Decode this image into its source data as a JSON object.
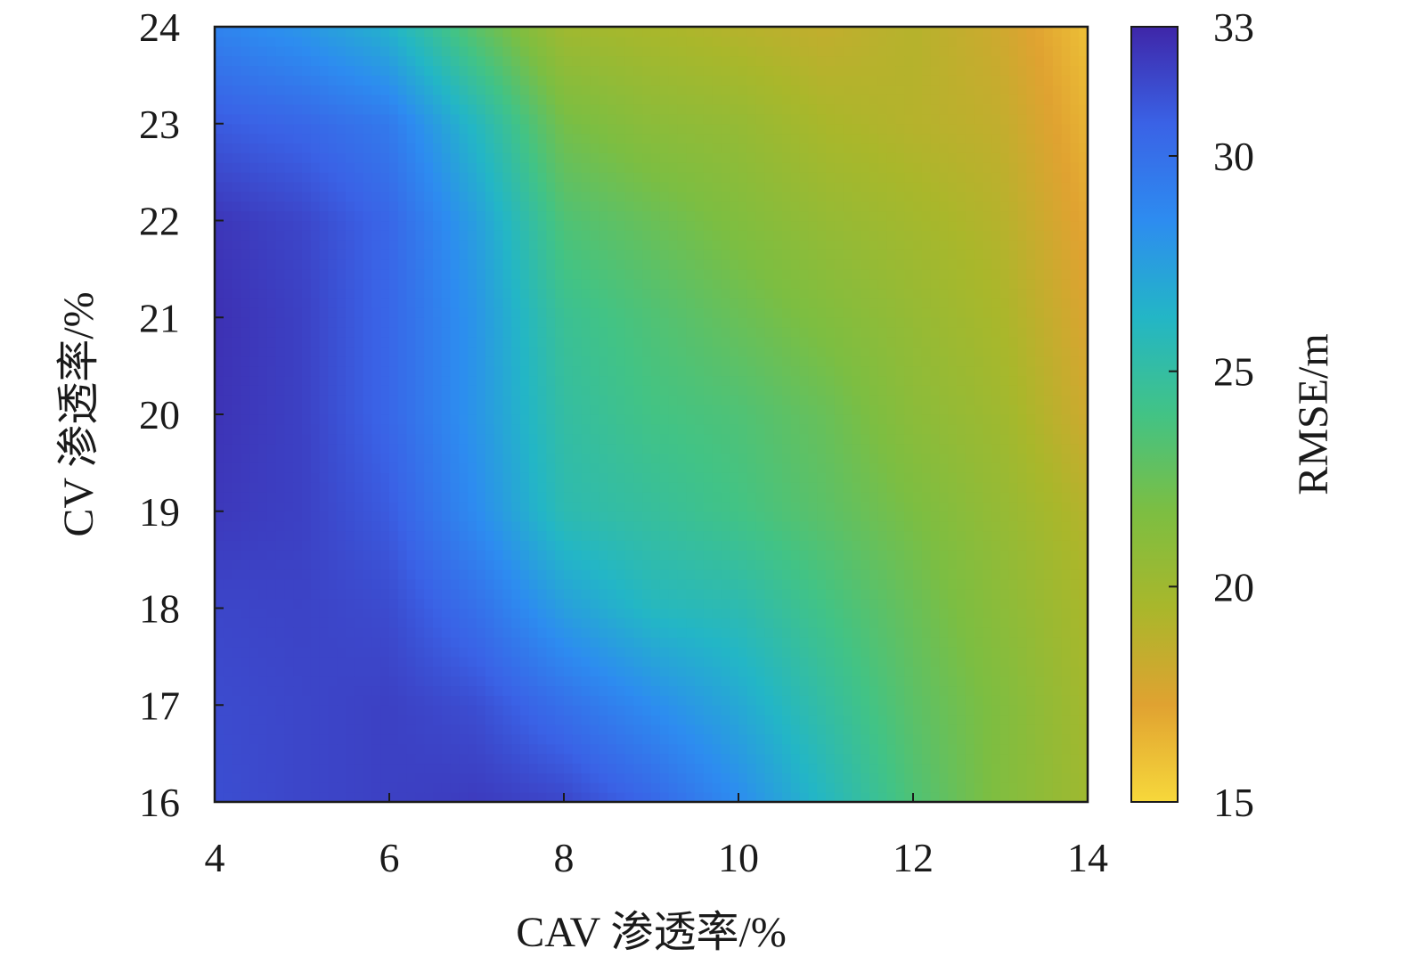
{
  "chart_data": {
    "type": "heatmap",
    "title": "",
    "xlabel": "CAV 渗透率/%",
    "ylabel": "CV 渗透率/%",
    "colorbar_label": "RMSE/m",
    "xlim": [
      4,
      14
    ],
    "ylim": [
      16,
      24
    ],
    "clim": [
      15,
      33
    ],
    "x_ticks": [
      "4",
      "6",
      "8",
      "10",
      "12",
      "14"
    ],
    "y_ticks": [
      "16",
      "17",
      "18",
      "19",
      "20",
      "21",
      "22",
      "23",
      "24"
    ],
    "colorbar_ticks": [
      "15",
      "20",
      "25",
      "30",
      "33"
    ],
    "colormap": [
      "#3e26a8",
      "#3a62e6",
      "#2d8cf0",
      "#23b6c6",
      "#42c385",
      "#7cbe42",
      "#a9b72b",
      "#e0a231",
      "#f7d83b"
    ],
    "grid": false,
    "x": [
      4,
      5,
      6,
      7,
      8,
      9,
      10,
      11,
      12,
      13,
      14
    ],
    "y": [
      16,
      17,
      18,
      19,
      20,
      21,
      22,
      23,
      24
    ],
    "z": [
      [
        31.5,
        31.8,
        32.0,
        32.2,
        31.8,
        30.5,
        28.5,
        26.0,
        23.5,
        21.5,
        20.0
      ],
      [
        31.6,
        31.8,
        32.0,
        31.5,
        30.0,
        28.5,
        27.0,
        25.0,
        23.0,
        21.5,
        19.8
      ],
      [
        31.8,
        31.9,
        31.6,
        30.0,
        27.5,
        26.0,
        25.5,
        24.0,
        22.5,
        21.0,
        19.5
      ],
      [
        32.3,
        32.0,
        31.0,
        28.5,
        25.5,
        24.8,
        24.0,
        23.0,
        21.8,
        20.5,
        19.0
      ],
      [
        32.5,
        32.0,
        30.5,
        28.0,
        25.0,
        24.0,
        23.5,
        22.5,
        21.0,
        20.0,
        18.0
      ],
      [
        32.6,
        32.0,
        30.5,
        28.0,
        24.5,
        23.5,
        22.5,
        21.5,
        20.5,
        19.5,
        17.5
      ],
      [
        32.4,
        31.8,
        30.5,
        27.5,
        23.5,
        22.5,
        21.5,
        20.5,
        19.8,
        19.0,
        17.0
      ],
      [
        31.0,
        30.5,
        29.5,
        26.0,
        22.0,
        21.0,
        20.5,
        19.5,
        19.0,
        18.5,
        16.5
      ],
      [
        29.0,
        28.0,
        26.5,
        23.0,
        20.0,
        19.5,
        19.0,
        18.5,
        19.0,
        18.0,
        16.0
      ]
    ]
  }
}
